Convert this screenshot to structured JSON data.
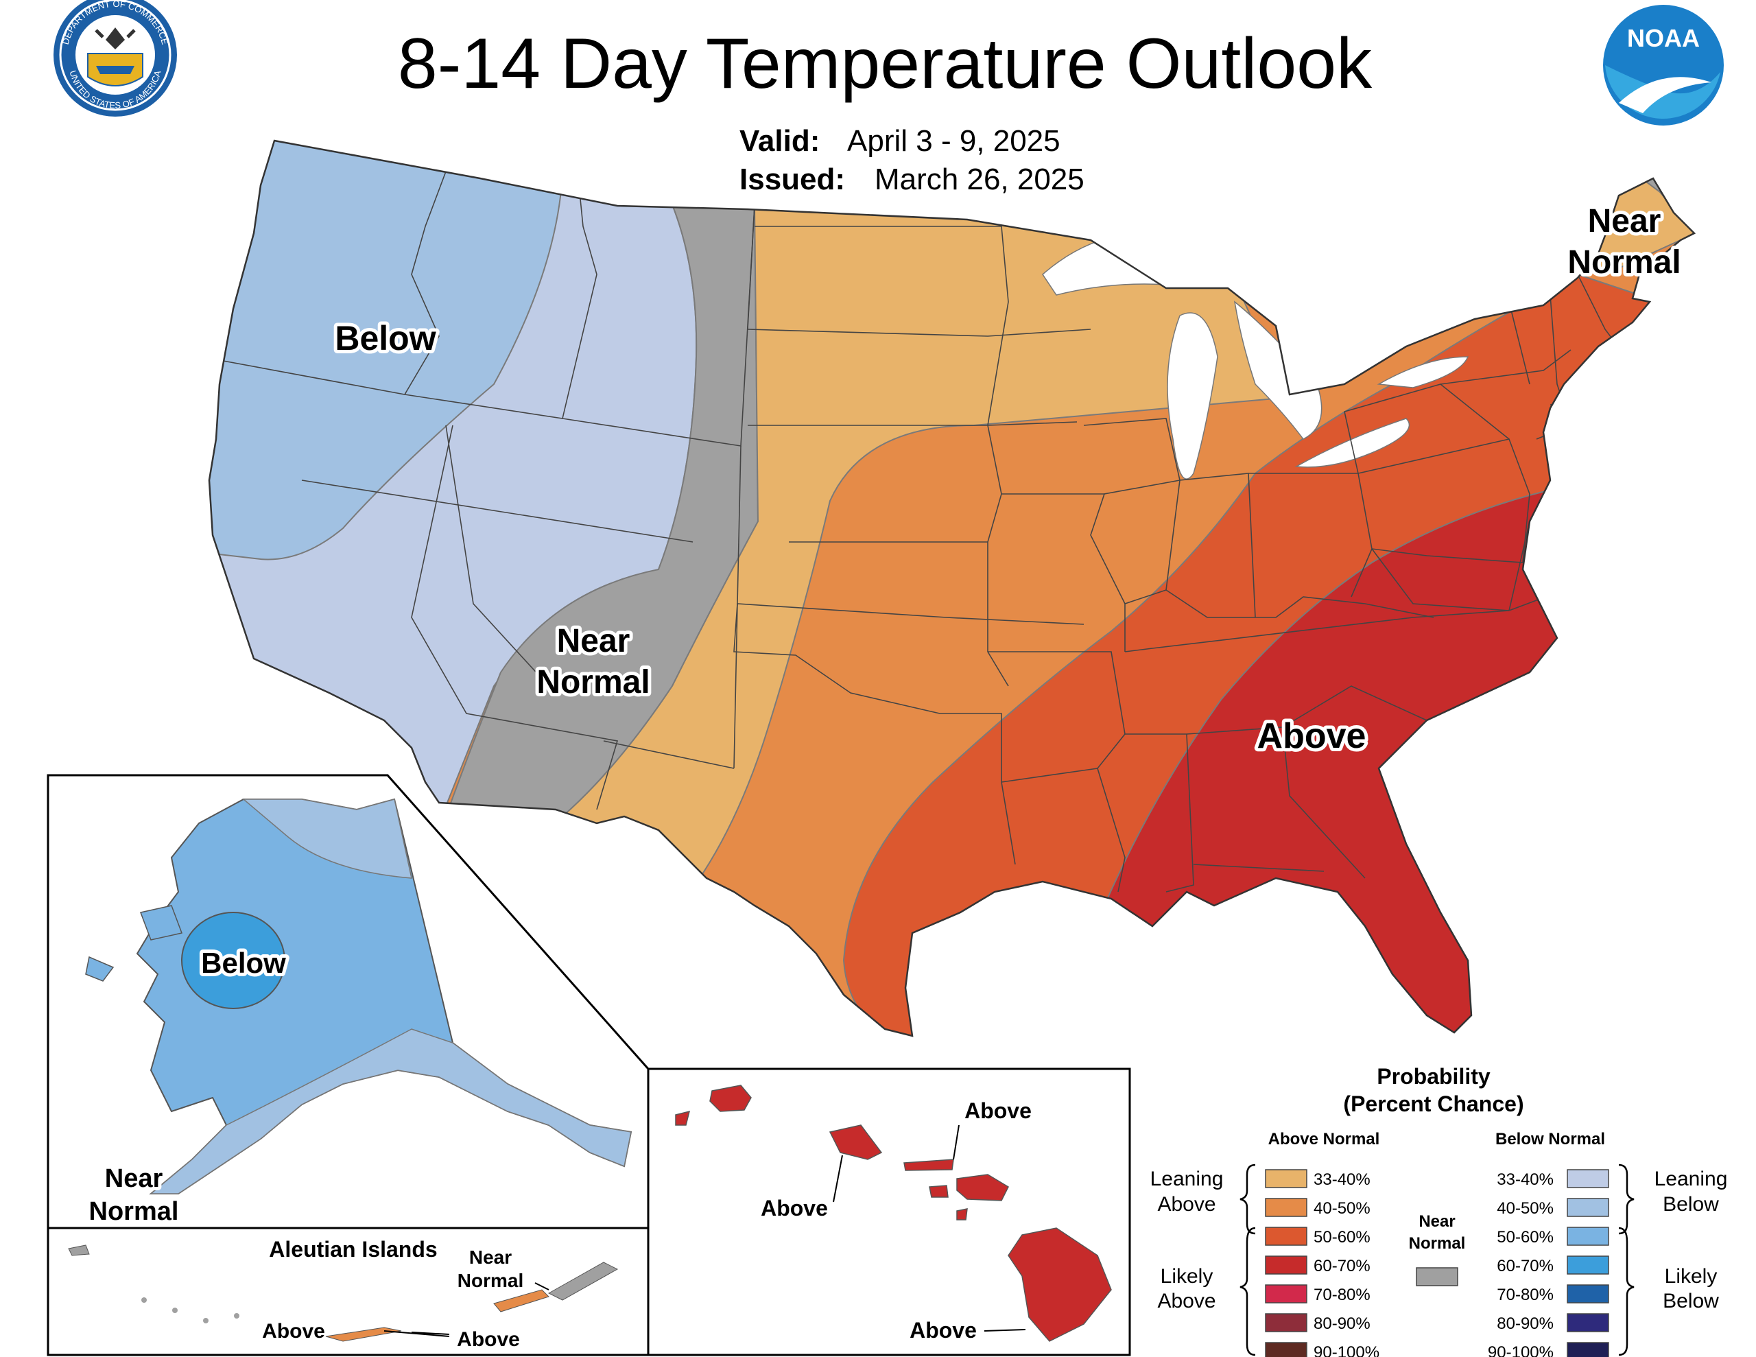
{
  "header": {
    "title": "8-14 Day Temperature Outlook",
    "valid_label": "Valid:",
    "valid_value": "April 3 - 9, 2025",
    "issued_label": "Issued:",
    "issued_value": "March 26, 2025",
    "left_logo_icon": "department-of-commerce-seal-icon",
    "left_logo_text_top": "DEPARTMENT OF COMMERCE",
    "left_logo_text_bottom": "UNITED STATES OF AMERICA",
    "right_logo_icon": "noaa-logo-icon",
    "right_logo_text": "NOAA"
  },
  "colors": {
    "above_33_40": "#E8B36A",
    "above_40_50": "#E58B48",
    "above_50_60": "#DC582F",
    "above_60_70": "#C62B2B",
    "above_70_80": "#D2294B",
    "above_80_90": "#8E2D3A",
    "above_90_100": "#5E2A22",
    "near_normal": "#A0A0A0",
    "below_33_40": "#BFCCE6",
    "below_40_50": "#A1C1E2",
    "below_50_60": "#7AB3E2",
    "below_60_70": "#3C9EDB",
    "below_70_80": "#1F62A8",
    "below_80_90": "#2E2A7C",
    "below_90_100": "#1F1F55"
  },
  "conus_labels": {
    "below": "Below",
    "near_normal_west_1": "Near",
    "near_normal_west_2": "Normal",
    "near_normal_ne_1": "Near",
    "near_normal_ne_2": "Normal",
    "above": "Above"
  },
  "alaska": {
    "below": "Below",
    "near_normal_1": "Near",
    "near_normal_2": "Normal"
  },
  "aleutians": {
    "title": "Aleutian Islands",
    "near_normal_1": "Near",
    "near_normal_2": "Normal",
    "above_left": "Above",
    "above_right": "Above"
  },
  "hawaii": {
    "above_1": "Above",
    "above_2": "Above",
    "above_3": "Above"
  },
  "legend": {
    "title_1": "Probability",
    "title_2": "(Percent Chance)",
    "above_header": "Above Normal",
    "below_header": "Below Normal",
    "near_1": "Near",
    "near_2": "Normal",
    "leaning_above_1": "Leaning",
    "leaning_above_2": "Above",
    "likely_above_1": "Likely",
    "likely_above_2": "Above",
    "leaning_below_1": "Leaning",
    "leaning_below_2": "Below",
    "likely_below_1": "Likely",
    "likely_below_2": "Below",
    "above_items": [
      "33-40%",
      "40-50%",
      "50-60%",
      "60-70%",
      "70-80%",
      "80-90%",
      "90-100%"
    ],
    "below_items": [
      "33-40%",
      "40-50%",
      "50-60%",
      "60-70%",
      "70-80%",
      "80-90%",
      "90-100%"
    ]
  }
}
